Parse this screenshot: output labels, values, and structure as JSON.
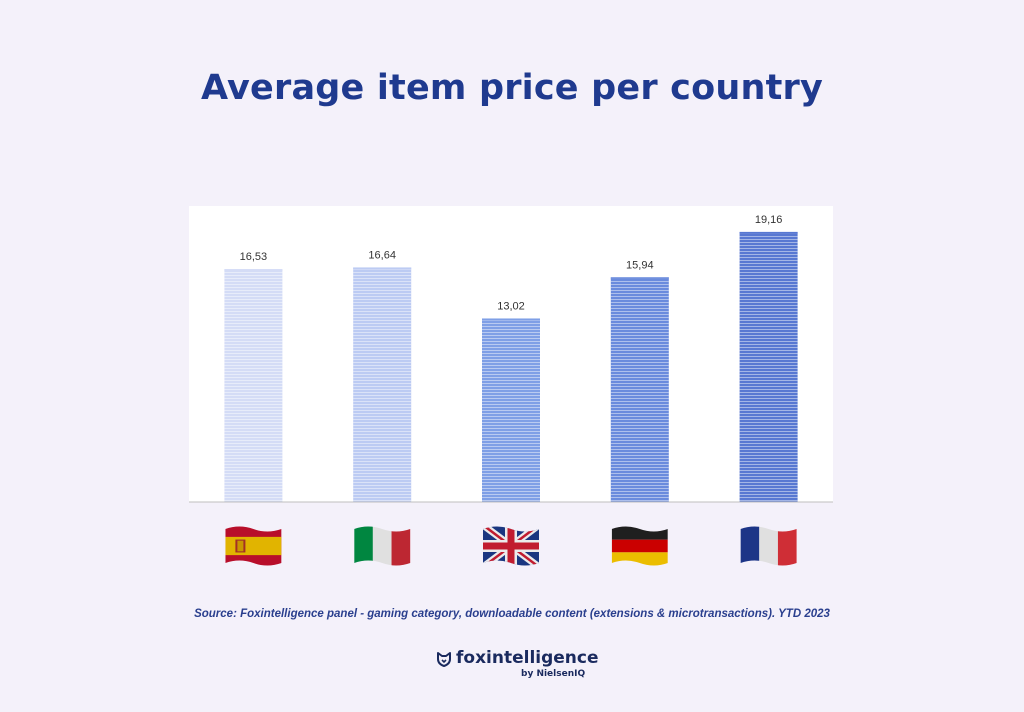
{
  "title": "Average item price per country",
  "source": "Source: Foxintelligence panel - gaming category, downloadable content (extensions & microtransactions). YTD 2023",
  "logo": {
    "name": "foxintelligence",
    "byline": "by NielsenIQ"
  },
  "colors": {
    "title": "#1f3a8f",
    "background": "#f4f1fa",
    "plot": "#ffffff"
  },
  "chart_data": {
    "type": "bar",
    "categories": [
      "Spain",
      "Italy",
      "United Kingdom",
      "Germany",
      "France"
    ],
    "category_icons": [
      "spain-flag-icon",
      "italy-flag-icon",
      "uk-flag-icon",
      "germany-flag-icon",
      "france-flag-icon"
    ],
    "values": [
      16.53,
      16.64,
      13.02,
      15.94,
      19.16
    ],
    "data_labels": [
      "16,53",
      "16,64",
      "13,02",
      "15,94",
      "19,16"
    ],
    "bar_colors": [
      "#d4dcf6",
      "#bccbf3",
      "#7f9fe6",
      "#6a8bdd",
      "#5878d2"
    ],
    "ylim": [
      0,
      21
    ],
    "grid": false,
    "legend": "none",
    "xlabel": "",
    "ylabel": ""
  }
}
